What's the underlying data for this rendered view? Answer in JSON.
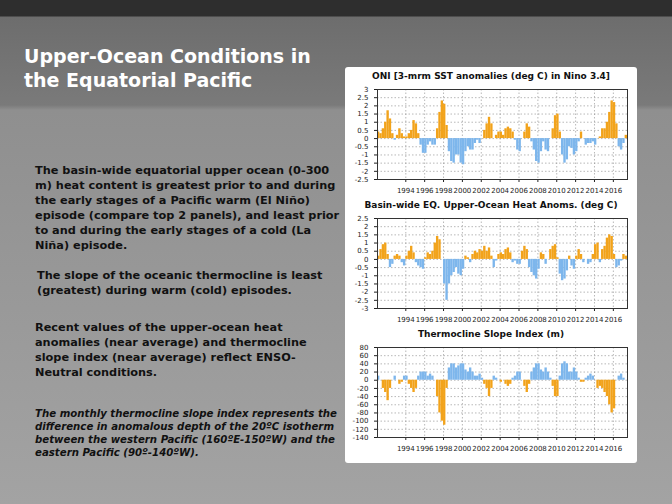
{
  "title": "Upper-Ocean Conditions in the Equatorial Pacific",
  "paragraphs": [
    "The basin-wide equatorial upper ocean (0-300 m) heat content is greatest prior to and during the early stages of a Pacific warm (El Niño) episode (compare top 2 panels), and least prior to and during the early stages of a cold (La Niña) episode.",
    "The slope of the oceanic thermocline is least (greatest) during warm (cold) episodes.",
    "Recent values of the upper-ocean heat anomalies (near average) and thermocline slope index (near average) reflect ENSO-Neutral conditions.",
    "The monthly thermocline slope index represents the difference in anomalous depth of the 20ºC isotherm between the western Pacific (160ºE-150ºW) and the eastern Pacific (90º-140ºW)."
  ],
  "chart_data": [
    {
      "type": "area",
      "title": "ONI [3-mrm SST anomalies (deg C) in Nino 3.4]",
      "colors": [
        "#f2a31b",
        "#7db6ec"
      ],
      "grid": true,
      "xlim": [
        1991,
        2017.5
      ],
      "xticks": [
        1994,
        1996,
        1998,
        2000,
        2002,
        2004,
        2006,
        2008,
        2010,
        2012,
        2014,
        2016
      ],
      "ylim": [
        -2.5,
        3
      ],
      "yticks": [
        -2.5,
        -2,
        -1.5,
        -1,
        -0.5,
        0,
        0.5,
        1,
        1.5,
        2,
        2.5,
        3
      ],
      "x": [
        1991,
        1991.25,
        1991.5,
        1991.75,
        1992,
        1992.25,
        1992.5,
        1992.75,
        1993,
        1993.25,
        1993.5,
        1993.75,
        1994,
        1994.25,
        1994.5,
        1994.75,
        1995,
        1995.25,
        1995.5,
        1995.75,
        1996,
        1996.25,
        1996.5,
        1996.75,
        1997,
        1997.25,
        1997.5,
        1997.75,
        1998,
        1998.25,
        1998.5,
        1998.75,
        1999,
        1999.25,
        1999.5,
        1999.75,
        2000,
        2000.25,
        2000.5,
        2000.75,
        2001,
        2001.25,
        2001.5,
        2001.75,
        2002,
        2002.25,
        2002.5,
        2002.75,
        2003,
        2003.25,
        2003.5,
        2003.75,
        2004,
        2004.25,
        2004.5,
        2004.75,
        2005,
        2005.25,
        2005.5,
        2005.75,
        2006,
        2006.25,
        2006.5,
        2006.75,
        2007,
        2007.25,
        2007.5,
        2007.75,
        2008,
        2008.25,
        2008.5,
        2008.75,
        2009,
        2009.25,
        2009.5,
        2009.75,
        2010,
        2010.25,
        2010.5,
        2010.75,
        2011,
        2011.25,
        2011.5,
        2011.75,
        2012,
        2012.25,
        2012.5,
        2012.75,
        2013,
        2013.25,
        2013.5,
        2013.75,
        2014,
        2014.25,
        2014.5,
        2014.75,
        2015,
        2015.25,
        2015.5,
        2015.75,
        2016,
        2016.25,
        2016.5,
        2016.75,
        2017,
        2017.25
      ],
      "values": [
        0.4,
        0.3,
        0.6,
        1.0,
        1.7,
        1.2,
        0.3,
        -0.1,
        0.2,
        0.6,
        0.3,
        0.1,
        0.1,
        0.3,
        0.5,
        1.1,
        0.9,
        0.3,
        -0.4,
        -0.9,
        -0.9,
        -0.4,
        -0.2,
        -0.4,
        -0.4,
        0.6,
        1.6,
        2.3,
        2.1,
        0.8,
        -0.8,
        -1.4,
        -1.5,
        -1.0,
        -1.0,
        -1.5,
        -1.6,
        -0.8,
        -0.5,
        -0.7,
        -0.7,
        -0.3,
        -0.1,
        -0.3,
        0.0,
        0.5,
        0.9,
        1.3,
        0.9,
        0.0,
        0.2,
        0.4,
        0.4,
        0.2,
        0.6,
        0.7,
        0.6,
        0.4,
        -0.1,
        -0.7,
        -0.8,
        0.0,
        0.4,
        0.9,
        0.7,
        -0.2,
        -0.7,
        -1.4,
        -1.5,
        -0.8,
        -0.2,
        -0.7,
        -0.8,
        0.0,
        0.6,
        1.4,
        1.5,
        0.4,
        -1.0,
        -1.5,
        -1.3,
        -0.5,
        -0.6,
        -1.0,
        -0.8,
        -0.2,
        0.4,
        0.0,
        -0.4,
        -0.3,
        -0.3,
        -0.2,
        -0.4,
        0.0,
        0.1,
        0.6,
        0.6,
        1.0,
        1.6,
        2.3,
        2.2,
        0.9,
        -0.5,
        -0.7,
        -0.3,
        0.2
      ]
    },
    {
      "type": "area",
      "title": "Basin-wide EQ. Upper-Ocean Heat Anoms. (deg C)",
      "colors": [
        "#f2a31b",
        "#7db6ec"
      ],
      "grid": true,
      "xlim": [
        1991,
        2017.5
      ],
      "xticks": [
        1994,
        1996,
        1998,
        2000,
        2002,
        2004,
        2006,
        2008,
        2010,
        2012,
        2014,
        2016
      ],
      "ylim": [
        -3,
        2.5
      ],
      "yticks": [
        -3,
        -2.5,
        -2,
        -1.5,
        -1,
        -0.5,
        0,
        0.5,
        1,
        1.5,
        2,
        2.5
      ],
      "x": [
        1991,
        1991.25,
        1991.5,
        1991.75,
        1992,
        1992.25,
        1992.5,
        1992.75,
        1993,
        1993.25,
        1993.5,
        1993.75,
        1994,
        1994.25,
        1994.5,
        1994.75,
        1995,
        1995.25,
        1995.5,
        1995.75,
        1996,
        1996.25,
        1996.5,
        1996.75,
        1997,
        1997.25,
        1997.5,
        1997.75,
        1998,
        1998.25,
        1998.5,
        1998.75,
        1999,
        1999.25,
        1999.5,
        1999.75,
        2000,
        2000.25,
        2000.5,
        2000.75,
        2001,
        2001.25,
        2001.5,
        2001.75,
        2002,
        2002.25,
        2002.5,
        2002.75,
        2003,
        2003.25,
        2003.5,
        2003.75,
        2004,
        2004.25,
        2004.5,
        2004.75,
        2005,
        2005.25,
        2005.5,
        2005.75,
        2006,
        2006.25,
        2006.5,
        2006.75,
        2007,
        2007.25,
        2007.5,
        2007.75,
        2008,
        2008.25,
        2008.5,
        2008.75,
        2009,
        2009.25,
        2009.5,
        2009.75,
        2010,
        2010.25,
        2010.5,
        2010.75,
        2011,
        2011.25,
        2011.5,
        2011.75,
        2012,
        2012.25,
        2012.5,
        2012.75,
        2013,
        2013.25,
        2013.5,
        2013.75,
        2014,
        2014.25,
        2014.5,
        2014.75,
        2015,
        2015.25,
        2015.5,
        2015.75,
        2016,
        2016.25,
        2016.5,
        2016.75,
        2017,
        2017.25
      ],
      "values": [
        0.2,
        0.6,
        0.9,
        1.0,
        0.3,
        -0.5,
        -0.3,
        0.2,
        0.3,
        0.2,
        -0.2,
        -0.4,
        0.2,
        0.5,
        0.8,
        0.4,
        -0.2,
        -0.4,
        -0.5,
        -0.6,
        0.1,
        0.4,
        0.3,
        0.5,
        1.0,
        1.4,
        1.2,
        0.0,
        -1.5,
        -2.5,
        -1.5,
        -1.0,
        -0.8,
        -0.5,
        -0.9,
        -1.0,
        -0.6,
        0.2,
        0.1,
        -0.2,
        0.3,
        0.5,
        0.4,
        0.6,
        0.5,
        0.8,
        0.5,
        0.7,
        0.2,
        -0.5,
        -0.1,
        0.3,
        0.4,
        0.3,
        0.6,
        0.7,
        0.4,
        -0.2,
        -0.1,
        -0.3,
        -0.3,
        0.5,
        0.8,
        0.6,
        -0.5,
        -0.8,
        -1.0,
        -1.2,
        -0.6,
        0.4,
        0.3,
        -0.3,
        0.0,
        0.6,
        0.8,
        0.9,
        0.1,
        -0.9,
        -1.3,
        -1.2,
        -0.7,
        0.2,
        -0.4,
        -0.6,
        0.2,
        0.6,
        0.3,
        -0.2,
        0.0,
        -0.3,
        -0.2,
        0.3,
        0.9,
        1.0,
        -0.2,
        0.6,
        0.8,
        1.3,
        1.5,
        1.4,
        0.3,
        -0.5,
        -0.4,
        -0.1,
        0.3,
        0.2
      ]
    },
    {
      "type": "area",
      "title": "Thermocline Slope Index (m)",
      "colors": [
        "#7db6ec",
        "#f2a31b"
      ],
      "grid": true,
      "xlim": [
        1991,
        2017.5
      ],
      "xticks": [
        1994,
        1996,
        1998,
        2000,
        2002,
        2004,
        2006,
        2008,
        2010,
        2012,
        2014,
        2016
      ],
      "ylim": [
        -140,
        80
      ],
      "yticks": [
        -140,
        -120,
        -100,
        -80,
        -60,
        -40,
        -20,
        0,
        20,
        40,
        60,
        80
      ],
      "x": [
        1991,
        1991.25,
        1991.5,
        1991.75,
        1992,
        1992.25,
        1992.5,
        1992.75,
        1993,
        1993.25,
        1993.5,
        1993.75,
        1994,
        1994.25,
        1994.5,
        1994.75,
        1995,
        1995.25,
        1995.5,
        1995.75,
        1996,
        1996.25,
        1996.5,
        1996.75,
        1997,
        1997.25,
        1997.5,
        1997.75,
        1998,
        1998.25,
        1998.5,
        1998.75,
        1999,
        1999.25,
        1999.5,
        1999.75,
        2000,
        2000.25,
        2000.5,
        2000.75,
        2001,
        2001.25,
        2001.5,
        2001.75,
        2002,
        2002.25,
        2002.5,
        2002.75,
        2003,
        2003.25,
        2003.5,
        2003.75,
        2004,
        2004.25,
        2004.5,
        2004.75,
        2005,
        2005.25,
        2005.5,
        2005.75,
        2006,
        2006.25,
        2006.5,
        2006.75,
        2007,
        2007.25,
        2007.5,
        2007.75,
        2008,
        2008.25,
        2008.5,
        2008.75,
        2009,
        2009.25,
        2009.5,
        2009.75,
        2010,
        2010.25,
        2010.5,
        2010.75,
        2011,
        2011.25,
        2011.5,
        2011.75,
        2012,
        2012.25,
        2012.5,
        2012.75,
        2013,
        2013.25,
        2013.5,
        2013.75,
        2014,
        2014.25,
        2014.5,
        2014.75,
        2015,
        2015.25,
        2015.5,
        2015.75,
        2016,
        2016.25,
        2016.5,
        2016.75,
        2017,
        2017.25
      ],
      "values": [
        10,
        0,
        -20,
        -30,
        -50,
        -20,
        0,
        10,
        0,
        -10,
        -5,
        10,
        10,
        -10,
        -20,
        -30,
        -20,
        10,
        20,
        20,
        20,
        10,
        15,
        10,
        0,
        -40,
        -80,
        -100,
        -110,
        -20,
        30,
        40,
        40,
        30,
        35,
        40,
        40,
        25,
        20,
        30,
        20,
        10,
        10,
        15,
        5,
        -10,
        -20,
        -40,
        -20,
        10,
        5,
        0,
        -5,
        0,
        -10,
        -15,
        -10,
        5,
        10,
        20,
        20,
        0,
        -15,
        -30,
        -10,
        20,
        30,
        40,
        40,
        25,
        20,
        30,
        20,
        5,
        -15,
        -40,
        -40,
        10,
        40,
        45,
        40,
        20,
        20,
        30,
        20,
        5,
        -5,
        -5,
        5,
        10,
        15,
        10,
        0,
        -20,
        -15,
        -20,
        -30,
        -40,
        -60,
        -80,
        -70,
        0,
        10,
        15,
        5,
        0
      ]
    }
  ]
}
